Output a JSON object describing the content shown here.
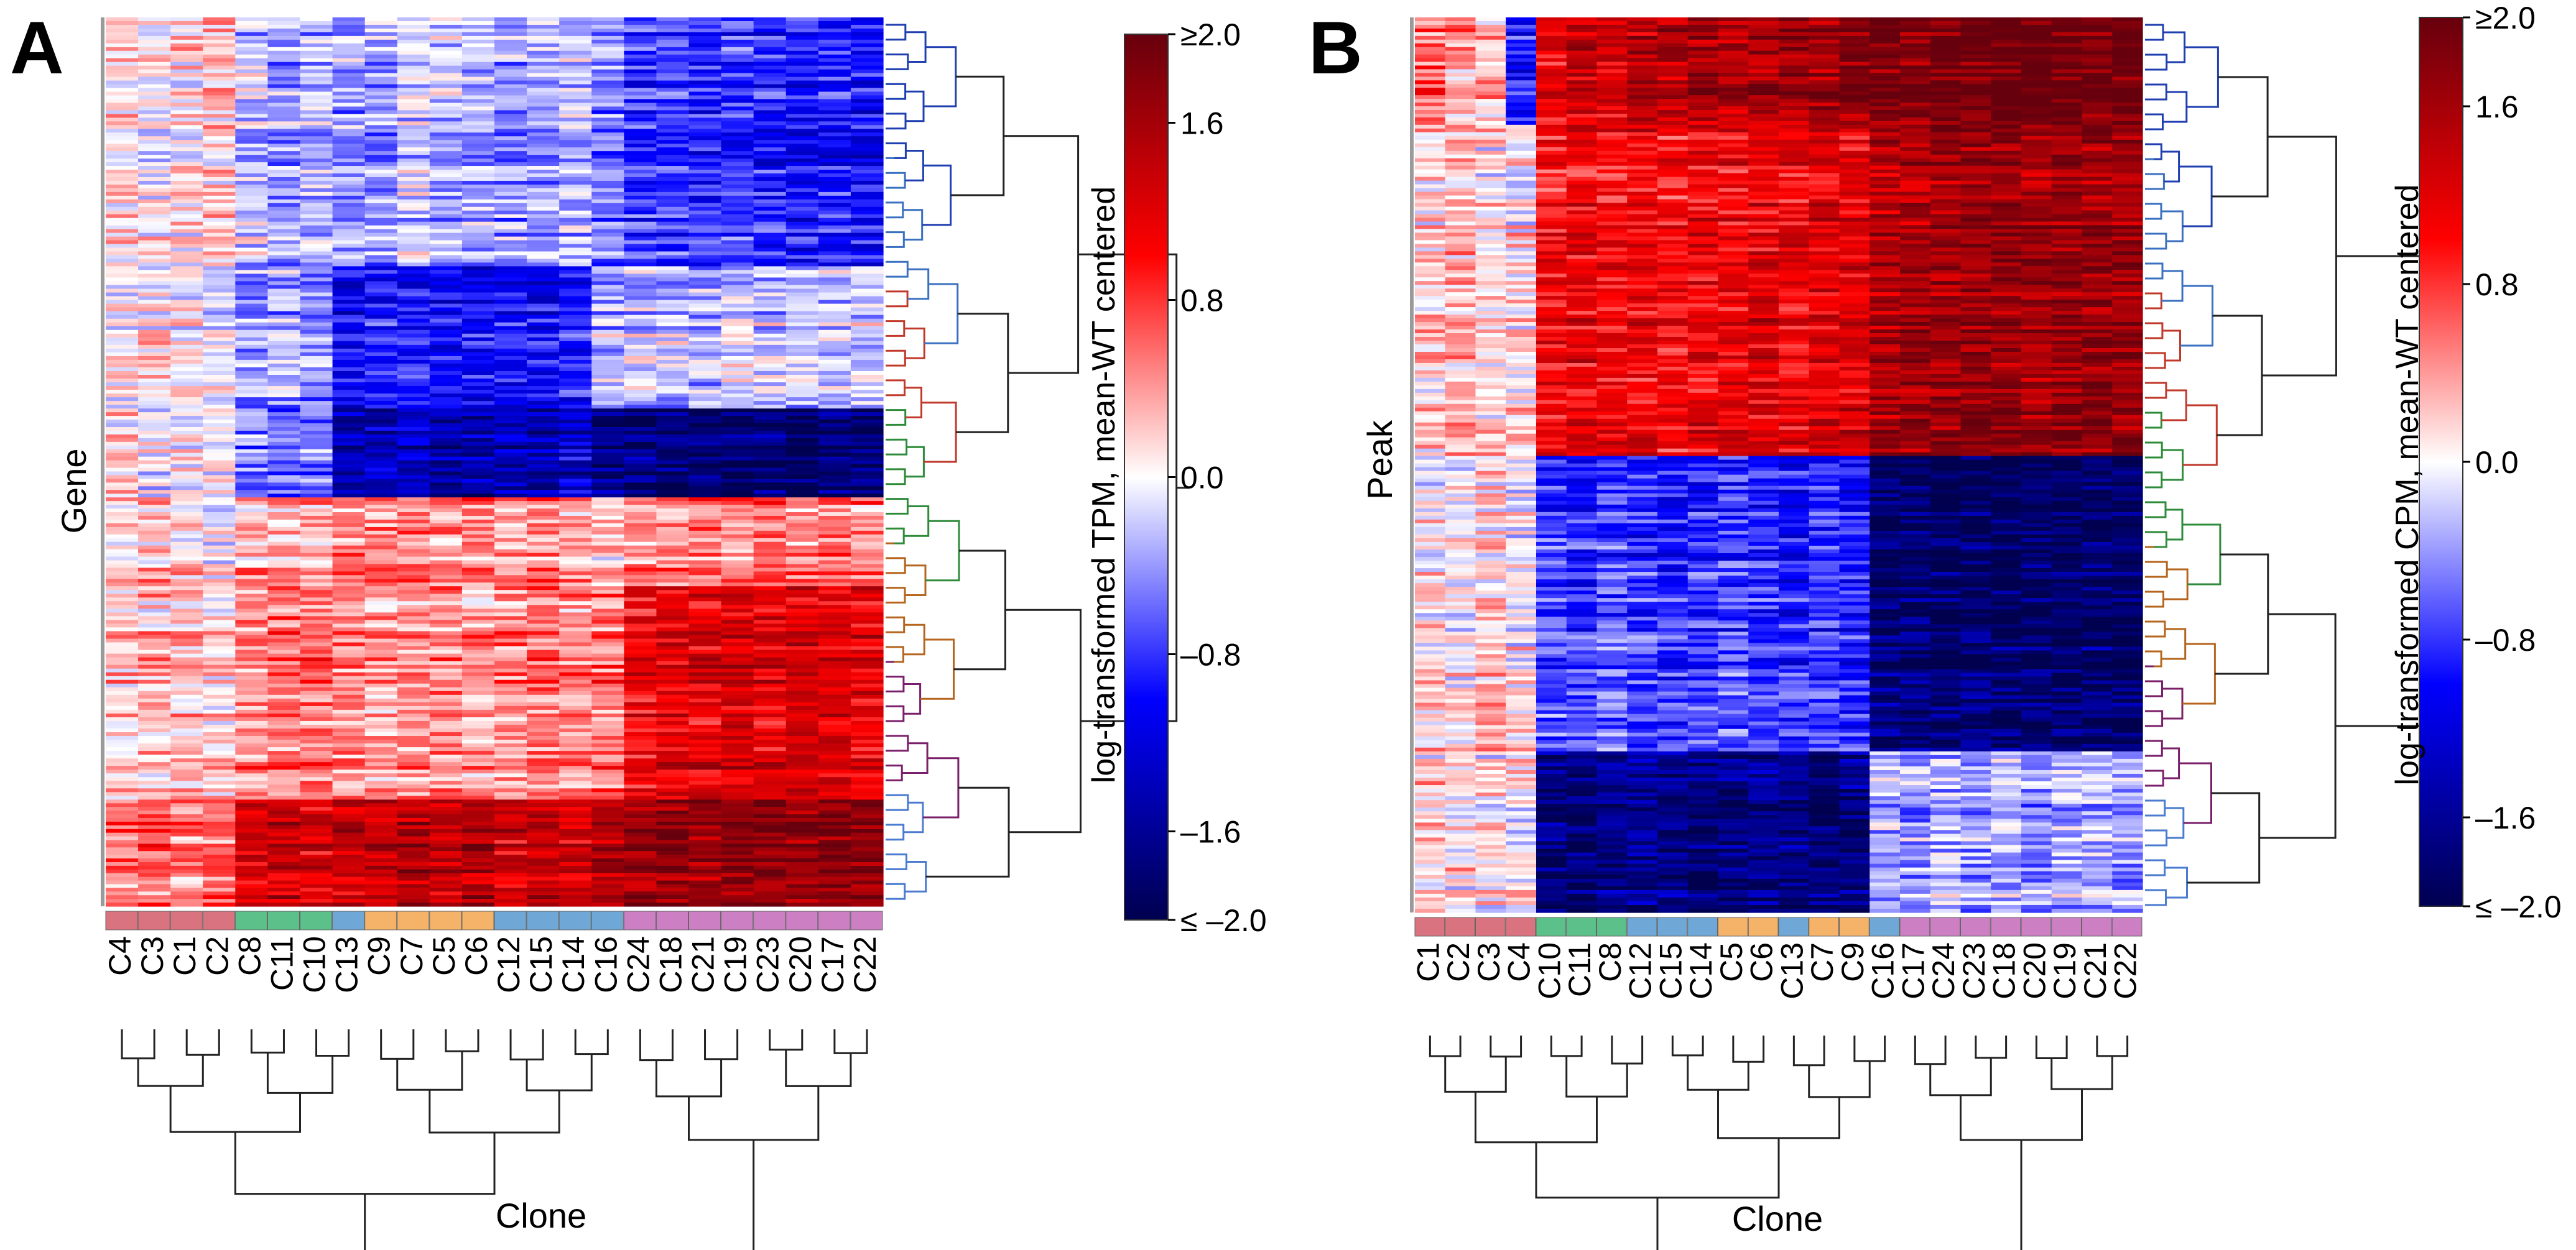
{
  "chart_data": [
    {
      "panel_label": "A",
      "type": "heatmap",
      "row_label": "Gene",
      "xlabel": "Clone",
      "colorbar": {
        "label": "log-transformed TPM, mean-WT centered",
        "min": -2.0,
        "max": 2.0,
        "ticks": [
          {
            "value": 2.0,
            "label": "≥2.0"
          },
          {
            "value": 1.6,
            "label": "1.6"
          },
          {
            "value": 0.8,
            "label": "0.8"
          },
          {
            "value": 0.0,
            "label": "0.0"
          },
          {
            "value": -0.8,
            "label": "–0.8"
          },
          {
            "value": -1.6,
            "label": "–1.6"
          },
          {
            "value": -2.0,
            "label": "≤ –2.0"
          }
        ]
      },
      "columns": [
        "C4",
        "C3",
        "C1",
        "C2",
        "C8",
        "C11",
        "C10",
        "C13",
        "C9",
        "C7",
        "C5",
        "C6",
        "C12",
        "C15",
        "C14",
        "C16",
        "C24",
        "C18",
        "C21",
        "C19",
        "C23",
        "C20",
        "C17",
        "C22"
      ],
      "column_groups": [
        "red",
        "red",
        "red",
        "red",
        "green",
        "green",
        "green",
        "blue",
        "orange",
        "orange",
        "orange",
        "orange",
        "blue",
        "blue",
        "blue",
        "blue",
        "purple",
        "purple",
        "purple",
        "purple",
        "purple",
        "purple",
        "purple",
        "purple"
      ],
      "row_blocks": [
        {
          "fraction": 0.28,
          "values": [
            0.1,
            0.0,
            0.1,
            0.2,
            -0.2,
            -0.4,
            -0.3,
            -0.4,
            -0.4,
            -0.2,
            -0.3,
            -0.3,
            -0.4,
            -0.4,
            -0.3,
            -0.5,
            -0.8,
            -0.8,
            -0.9,
            -0.8,
            -0.9,
            -1.0,
            -0.9,
            -1.0
          ]
        },
        {
          "fraction": 0.16,
          "values": [
            0.0,
            0.1,
            0.0,
            -0.1,
            -0.4,
            -0.3,
            -0.4,
            -1.0,
            -0.9,
            -0.9,
            -1.0,
            -1.0,
            -1.0,
            -1.0,
            -0.9,
            -0.3,
            -0.2,
            -0.2,
            -0.3,
            -0.1,
            -0.2,
            -0.2,
            -0.2,
            -0.2
          ]
        },
        {
          "fraction": 0.1,
          "values": [
            0.1,
            0.0,
            0.1,
            0.0,
            -0.5,
            -0.6,
            -0.5,
            -1.5,
            -1.4,
            -1.4,
            -1.5,
            -1.5,
            -1.4,
            -1.4,
            -1.3,
            -1.7,
            -1.8,
            -1.8,
            -1.8,
            -1.9,
            -1.8,
            -1.9,
            -1.8,
            -1.8
          ]
        },
        {
          "fraction": 0.1,
          "values": [
            0.2,
            0.3,
            0.2,
            0.1,
            0.4,
            0.3,
            0.4,
            0.5,
            0.5,
            0.6,
            0.5,
            0.6,
            0.4,
            0.5,
            0.4,
            0.3,
            0.5,
            0.5,
            0.6,
            0.5,
            0.6,
            0.5,
            0.6,
            0.5
          ]
        },
        {
          "fraction": 0.24,
          "values": [
            0.2,
            0.3,
            0.3,
            0.2,
            0.5,
            0.6,
            0.6,
            0.5,
            0.4,
            0.5,
            0.5,
            0.4,
            0.5,
            0.6,
            0.5,
            0.6,
            1.1,
            1.2,
            1.2,
            1.3,
            1.2,
            1.3,
            1.3,
            1.2
          ]
        },
        {
          "fraction": 0.12,
          "values": [
            0.5,
            0.6,
            0.5,
            0.6,
            1.3,
            1.4,
            1.3,
            1.4,
            1.4,
            1.5,
            1.4,
            1.5,
            1.3,
            1.4,
            1.3,
            1.5,
            1.7,
            1.8,
            1.7,
            1.8,
            1.8,
            1.7,
            1.8,
            1.8
          ]
        }
      ]
    },
    {
      "panel_label": "B",
      "type": "heatmap",
      "row_label": "Peak",
      "xlabel": "Clone",
      "colorbar": {
        "label": "log-transformed CPM, mean-WT centered",
        "min": -2.0,
        "max": 2.0,
        "ticks": [
          {
            "value": 2.0,
            "label": "≥2.0"
          },
          {
            "value": 1.6,
            "label": "1.6"
          },
          {
            "value": 0.8,
            "label": "0.8"
          },
          {
            "value": 0.0,
            "label": "0.0"
          },
          {
            "value": -0.8,
            "label": "–0.8"
          },
          {
            "value": -1.6,
            "label": "–1.6"
          },
          {
            "value": -2.0,
            "label": "≤ –2.0"
          }
        ]
      },
      "columns": [
        "C1",
        "C2",
        "C3",
        "C4",
        "C10",
        "C11",
        "C8",
        "C12",
        "C15",
        "C14",
        "C5",
        "C6",
        "C13",
        "C7",
        "C9",
        "C16",
        "C17",
        "C24",
        "C23",
        "C18",
        "C20",
        "C19",
        "C21",
        "C22"
      ],
      "column_groups": [
        "red",
        "red",
        "red",
        "red",
        "green",
        "green",
        "green",
        "blue",
        "blue",
        "blue",
        "orange",
        "orange",
        "blue",
        "orange",
        "orange",
        "blue",
        "purple",
        "purple",
        "purple",
        "purple",
        "purple",
        "purple",
        "purple",
        "purple"
      ],
      "row_blocks": [
        {
          "fraction": 0.12,
          "values": [
            0.6,
            0.4,
            0.3,
            -0.8,
            1.2,
            1.4,
            1.3,
            1.5,
            1.5,
            1.6,
            1.5,
            1.6,
            1.7,
            1.7,
            1.8,
            1.9,
            1.9,
            2.0,
            2.0,
            2.0,
            2.0,
            2.0,
            2.0,
            2.0
          ]
        },
        {
          "fraction": 0.37,
          "values": [
            0.2,
            0.3,
            0.1,
            0.1,
            1.0,
            1.1,
            1.0,
            1.1,
            1.0,
            1.1,
            1.1,
            1.2,
            1.1,
            1.2,
            1.2,
            1.5,
            1.6,
            1.6,
            1.7,
            1.7,
            1.6,
            1.7,
            1.7,
            1.6
          ]
        },
        {
          "fraction": 0.33,
          "values": [
            0.1,
            0.0,
            0.2,
            0.0,
            -0.7,
            -0.8,
            -0.7,
            -0.8,
            -0.9,
            -0.8,
            -0.7,
            -0.8,
            -0.9,
            -0.8,
            -0.9,
            -1.8,
            -1.8,
            -1.9,
            -1.8,
            -1.9,
            -1.8,
            -1.9,
            -1.8,
            -1.9
          ]
        },
        {
          "fraction": 0.18,
          "values": [
            0.2,
            0.1,
            0.1,
            0.0,
            -1.7,
            -1.8,
            -1.7,
            -1.6,
            -1.7,
            -1.8,
            -1.7,
            -1.6,
            -1.7,
            -1.8,
            -1.7,
            -0.3,
            -0.4,
            -0.3,
            -0.4,
            -0.3,
            -0.4,
            -0.3,
            -0.3,
            -0.4
          ]
        }
      ]
    }
  ]
}
